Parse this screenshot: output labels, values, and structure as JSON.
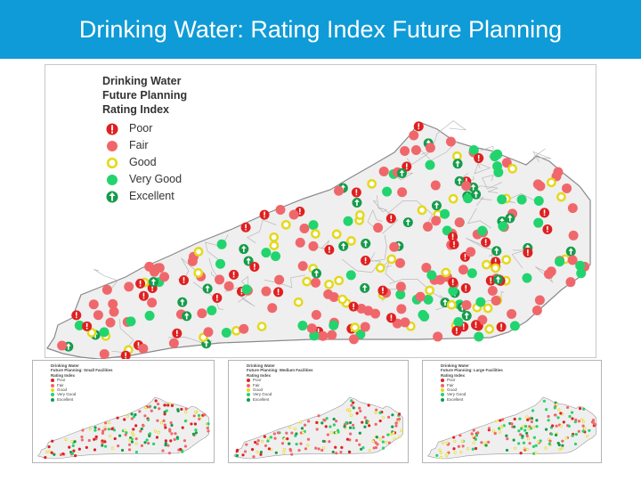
{
  "slide": {
    "title": "Drinking Water: Rating Index Future Planning"
  },
  "main_map": {
    "legend": {
      "title_lines": [
        "Drinking Water",
        "Future Planning",
        "Rating Index"
      ],
      "items": [
        {
          "label": "Poor",
          "color": "#e02020",
          "symbol": "exclamation-icon"
        },
        {
          "label": "Fair",
          "color": "#f0676b",
          "symbol": "dot-icon"
        },
        {
          "label": "Good",
          "color": "#e3d91c",
          "symbol": "ring-icon"
        },
        {
          "label": "Very Good",
          "color": "#22d46e",
          "symbol": "dot-icon"
        },
        {
          "label": "Excellent",
          "color": "#159c4b",
          "symbol": "arrow-up-icon"
        }
      ]
    }
  },
  "mini_maps": [
    {
      "title_lines": [
        "Drinking Water",
        "Future Planning: Small Facilities",
        "Rating Index"
      ],
      "legend": [
        "Poor",
        "Fair",
        "Good",
        "Very Good",
        "Excellent"
      ]
    },
    {
      "title_lines": [
        "Drinking Water",
        "Future Planning: Medium Facilities",
        "Rating Index"
      ],
      "legend": [
        "Poor",
        "Fair",
        "Good",
        "Very Good",
        "Excellent"
      ]
    },
    {
      "title_lines": [
        "Drinking Water",
        "Future Planning: Large Facilities",
        "Rating Index"
      ],
      "legend": [
        "Poor",
        "Fair",
        "Good",
        "Very Good",
        "Excellent"
      ]
    }
  ]
}
